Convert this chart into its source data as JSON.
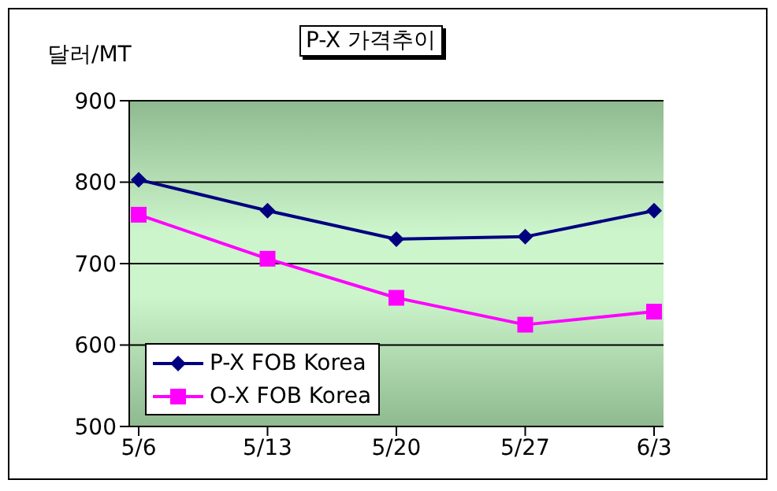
{
  "chart_data": {
    "type": "line",
    "title": "P-X 가격추이",
    "ylabel": "달러/MT",
    "categories": [
      "5/6",
      "5/13",
      "5/20",
      "5/27",
      "6/3"
    ],
    "series": [
      {
        "name": "P-X FOB Korea",
        "color": "#000080",
        "marker": "diamond",
        "values": [
          803,
          765,
          730,
          733,
          765
        ]
      },
      {
        "name": "O-X FOB Korea",
        "color": "#ff00ff",
        "marker": "square",
        "values": [
          760,
          706,
          658,
          625,
          641
        ]
      }
    ],
    "ylim": [
      500,
      900
    ],
    "yticks": [
      500,
      600,
      700,
      800,
      900
    ],
    "grid": "y",
    "legend": "bottom left"
  }
}
